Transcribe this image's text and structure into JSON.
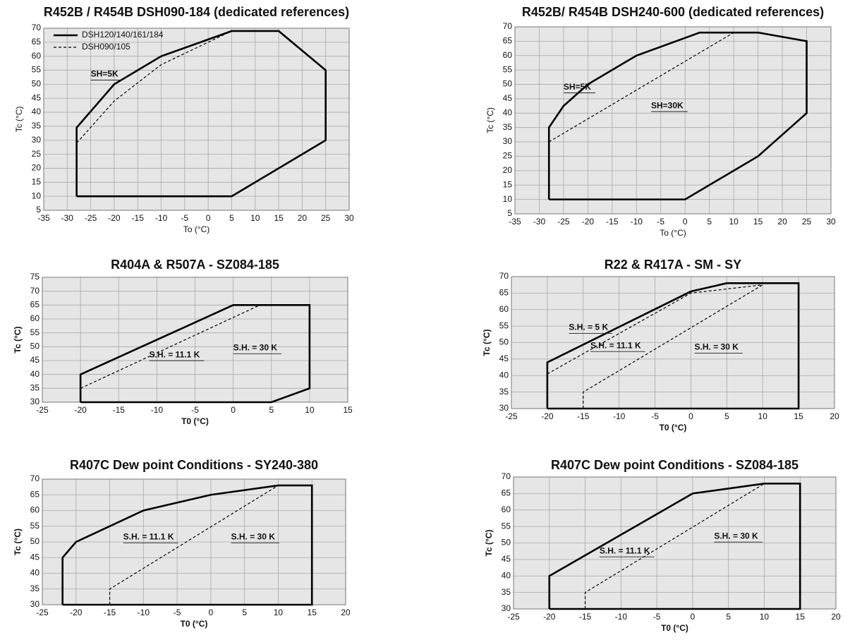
{
  "chart_data": [
    {
      "type": "line",
      "title": "R452B / R454B DSH090-184 (dedicated references)",
      "x_label": "To (°C)",
      "y_label": "Tc (°C)",
      "xlim": [
        -35,
        30
      ],
      "ylim": [
        5,
        70
      ],
      "xticks": [
        -35,
        -30,
        -25,
        -20,
        -15,
        -10,
        -5,
        0,
        5,
        10,
        15,
        20,
        25,
        30
      ],
      "yticks": [
        5,
        10,
        15,
        20,
        25,
        30,
        35,
        40,
        45,
        50,
        55,
        60,
        65,
        70
      ],
      "grid": true,
      "legend": "top-left",
      "series": [
        {
          "name": "DSH120/140/161/184",
          "color": "#000000",
          "dashed": false,
          "x": [
            -28,
            5,
            25,
            25,
            15,
            5,
            -10,
            -20,
            -28,
            -28
          ],
          "values": [
            10,
            10,
            30,
            55,
            69,
            69,
            60,
            50,
            34.5,
            10
          ]
        },
        {
          "name": "DSH090/105",
          "color": "#000000",
          "dashed": true,
          "x": [
            -28,
            -20,
            -10,
            5
          ],
          "values": [
            29,
            44,
            57,
            69
          ]
        }
      ],
      "annotations": [
        "SH=5K"
      ]
    },
    {
      "type": "line",
      "title": "R452B/ R454B DSH240-600 (dedicated references)",
      "x_label": "To (°C)",
      "y_label": "Tc (°C)",
      "xlim": [
        -35,
        30
      ],
      "ylim": [
        5,
        70
      ],
      "xticks": [
        -35,
        -30,
        -25,
        -20,
        -15,
        -10,
        -5,
        0,
        5,
        10,
        15,
        20,
        25,
        30
      ],
      "yticks": [
        5,
        10,
        15,
        20,
        25,
        30,
        35,
        40,
        45,
        50,
        55,
        60,
        65,
        70
      ],
      "grid": true,
      "series": [
        {
          "color": "#000000",
          "dashed": false,
          "x": [
            -28,
            0,
            15,
            25,
            25,
            15,
            3,
            -10,
            -20,
            -25,
            -28,
            -28
          ],
          "values": [
            10,
            10,
            25,
            40,
            65,
            68,
            68,
            60,
            50,
            42.5,
            35,
            10
          ]
        },
        {
          "color": "#000000",
          "dashed": true,
          "x": [
            -28,
            10
          ],
          "values": [
            30,
            68
          ]
        }
      ],
      "annotations": [
        "SH=5K",
        "SH=30K"
      ]
    },
    {
      "type": "line",
      "title": "R404A & R507A - SZ084-185",
      "x_label": "T0 (°C)",
      "y_label": "Tc (°C)",
      "xlim": [
        -25,
        15
      ],
      "ylim": [
        30,
        75
      ],
      "xticks": [
        -25,
        -20,
        -15,
        -10,
        -5,
        0,
        5,
        10,
        15
      ],
      "yticks": [
        30,
        35,
        40,
        45,
        50,
        55,
        60,
        65,
        70,
        75
      ],
      "grid": true,
      "series": [
        {
          "color": "#000000",
          "dashed": false,
          "x": [
            -20,
            5,
            10,
            10,
            0,
            -20,
            -20
          ],
          "values": [
            30,
            30,
            35,
            65,
            65,
            40,
            30
          ]
        },
        {
          "color": "#000000",
          "dashed": true,
          "x": [
            -20,
            3.5
          ],
          "values": [
            35,
            65
          ]
        }
      ],
      "annotations": [
        "S.H. = 30 K",
        "S.H. = 11.1 K"
      ]
    },
    {
      "type": "line",
      "title": "R22 & R417A - SM - SY",
      "x_label": "T0 (°C)",
      "y_label": "Tc (°C)",
      "xlim": [
        -25,
        20
      ],
      "ylim": [
        30,
        70
      ],
      "xticks": [
        -25,
        -20,
        -15,
        -10,
        -5,
        0,
        5,
        10,
        15,
        20
      ],
      "yticks": [
        30,
        35,
        40,
        45,
        50,
        55,
        60,
        65,
        70
      ],
      "grid": true,
      "series": [
        {
          "color": "#000000",
          "dashed": false,
          "x": [
            -20,
            15,
            15,
            5,
            0,
            -20,
            -20
          ],
          "values": [
            30,
            30,
            68,
            68,
            65.5,
            44,
            30
          ]
        },
        {
          "color": "#000000",
          "dashed": true,
          "x": [
            -20,
            0,
            10
          ],
          "values": [
            40.5,
            65,
            67.5
          ]
        },
        {
          "color": "#000000",
          "dashed": true,
          "x": [
            -15,
            -15,
            10
          ],
          "values": [
            30,
            35,
            67.5
          ]
        }
      ],
      "annotations": [
        "S.H. = 5 K",
        "S.H. = 11.1 K",
        "S.H. = 30 K"
      ]
    },
    {
      "type": "line",
      "title": "R407C  Dew point Conditions - SY240-380",
      "x_label": "T0 (°C)",
      "y_label": "Tc (°C)",
      "xlim": [
        -25,
        20
      ],
      "ylim": [
        30,
        70
      ],
      "xticks": [
        -25,
        -20,
        -15,
        -10,
        -5,
        0,
        5,
        10,
        15,
        20
      ],
      "yticks": [
        30,
        35,
        40,
        45,
        50,
        55,
        60,
        65,
        70
      ],
      "grid": true,
      "series": [
        {
          "color": "#000000",
          "dashed": false,
          "x": [
            -22,
            15,
            15,
            10,
            0,
            -10,
            -20,
            -22,
            -22
          ],
          "values": [
            30,
            30,
            68,
            68,
            65,
            60,
            50,
            45,
            30
          ]
        },
        {
          "color": "#000000",
          "dashed": true,
          "x": [
            -15,
            -15,
            10
          ],
          "values": [
            30,
            35,
            68
          ]
        }
      ],
      "annotations": [
        "S.H. = 11.1 K",
        "S.H. = 30 K"
      ]
    },
    {
      "type": "line",
      "title": "R407C Dew point Conditions  - SZ084-185",
      "x_label": "T0 (°C)",
      "y_label": "Tc (°C)",
      "xlim": [
        -25,
        20
      ],
      "ylim": [
        30,
        70
      ],
      "xticks": [
        -25,
        -20,
        -15,
        -10,
        -5,
        0,
        5,
        10,
        15,
        20
      ],
      "yticks": [
        30,
        35,
        40,
        45,
        50,
        55,
        60,
        65,
        70
      ],
      "grid": true,
      "series": [
        {
          "color": "#000000",
          "dashed": false,
          "x": [
            -20,
            15,
            15,
            10,
            0,
            -20,
            -20
          ],
          "values": [
            30,
            30,
            68,
            68,
            65,
            40,
            30
          ]
        },
        {
          "color": "#000000",
          "dashed": true,
          "x": [
            -15,
            -15,
            10
          ],
          "values": [
            30,
            35,
            68
          ]
        }
      ],
      "annotations": [
        "S.H. = 11.1 K",
        "S.H. = 30 K"
      ]
    }
  ]
}
